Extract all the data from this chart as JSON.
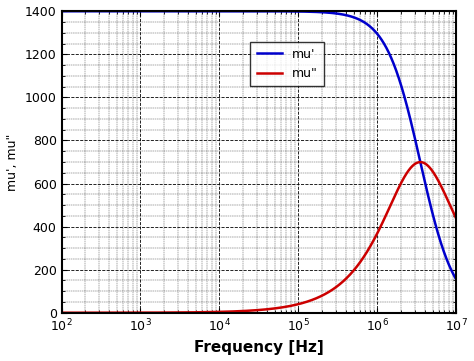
{
  "xlabel": "Frequency [Hz]",
  "ylabel": "mu', mu\"",
  "xlim_log": [
    2,
    7
  ],
  "ylim": [
    0,
    1400
  ],
  "mu_prime_color": "#0000CC",
  "mu_doubleprime_color": "#CC0000",
  "legend_mu_prime": "mu'",
  "legend_mu_doubleprime": "mu\"",
  "background_color": "#FFFFFF",
  "mu_s": 1400,
  "mu_inf": 1.0,
  "f0": 3500000,
  "yticks": [
    0,
    200,
    400,
    600,
    800,
    1000,
    1200,
    1400
  ]
}
